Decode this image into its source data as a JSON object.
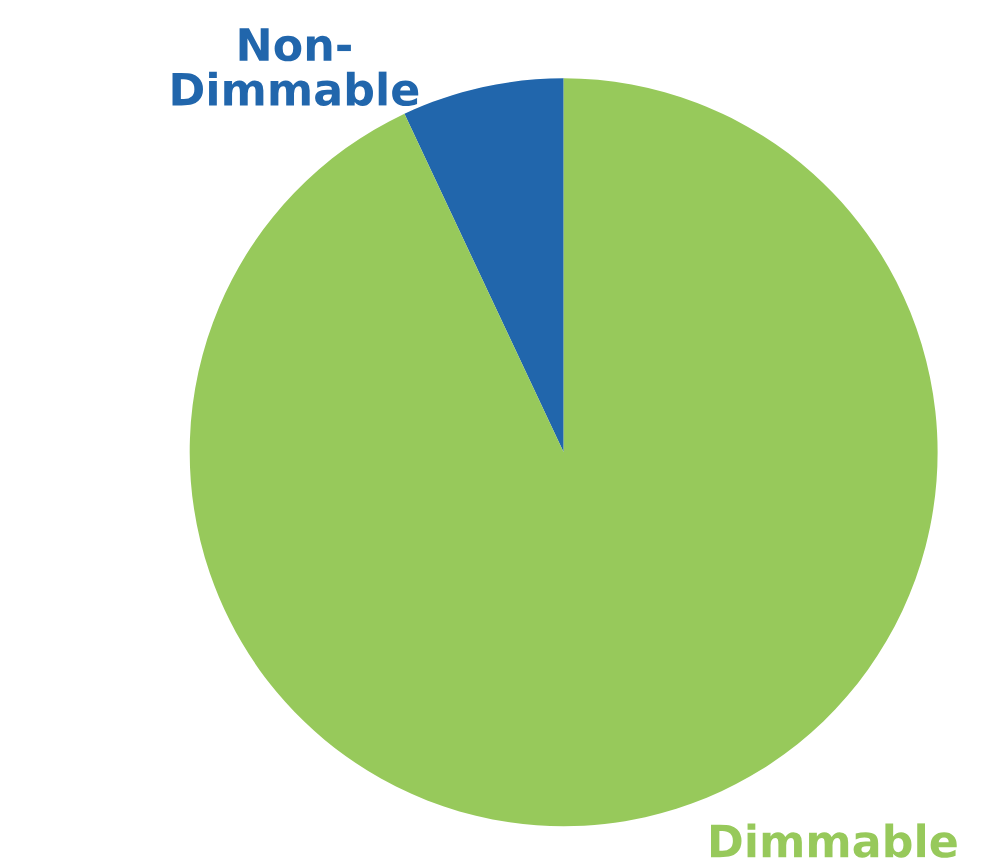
{
  "chart_data": {
    "type": "pie",
    "categories": [
      "Non-\nDimmable",
      "Dimmable"
    ],
    "values": [
      7,
      93
    ],
    "colors": [
      "#2166ac",
      "#97c95b"
    ]
  }
}
